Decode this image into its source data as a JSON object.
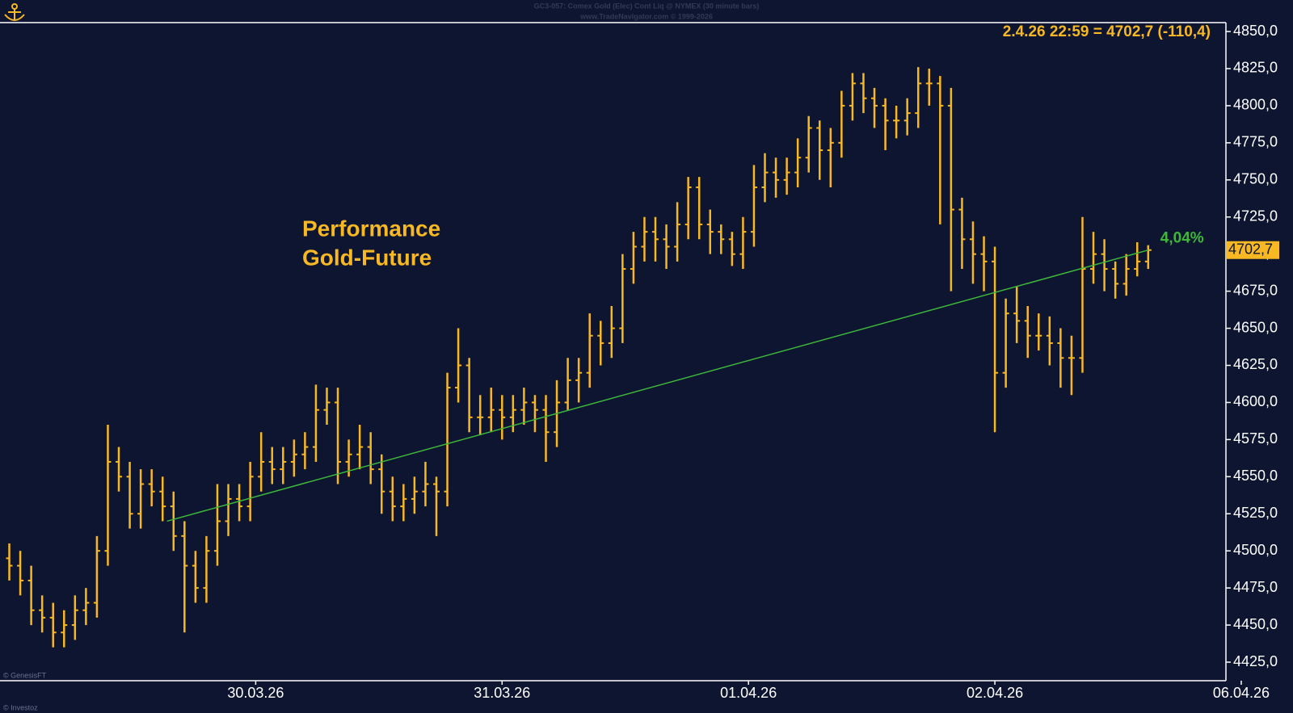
{
  "chart_data": {
    "type": "ohlc",
    "header": "GC3-057:  Comex Gold (Elec) Cont Liq @ NYMEX  (30 minute bars)",
    "subheader": "www.TradeNavigator.com © 1999-2026",
    "annotation": [
      "Performance",
      "Gold-Future"
    ],
    "info": "2.4.26 22:59 = 4702,7 (-110,4)",
    "copyright": "© GenesisFT",
    "footer": "© Investoz",
    "color": "#f7b824",
    "x": [
      0,
      1,
      2,
      3,
      4,
      5,
      6,
      7,
      8,
      9,
      10,
      11,
      12,
      13,
      14,
      15,
      16,
      17,
      18,
      19,
      20,
      21,
      22,
      23,
      24,
      25,
      26,
      27,
      28,
      29,
      30,
      31,
      32,
      33,
      34,
      35,
      36,
      37,
      38,
      39,
      40,
      41,
      42,
      43,
      44,
      45,
      46,
      47,
      48,
      49,
      50,
      51,
      52,
      53,
      54,
      55,
      56,
      57,
      58,
      59,
      60,
      61,
      62,
      63,
      64,
      65,
      66,
      67,
      68,
      69,
      70,
      71,
      72,
      73,
      74,
      75,
      76,
      77,
      78,
      79,
      80,
      81,
      82,
      83,
      84,
      85,
      86,
      87,
      88,
      89,
      90,
      91,
      92,
      93,
      94,
      95,
      96,
      97,
      98,
      99,
      100,
      101,
      102,
      103,
      104
    ],
    "open": [
      4495,
      4490,
      4480,
      4460,
      4455,
      4445,
      4450,
      4460,
      4465,
      4500,
      4560,
      4550,
      4525,
      4545,
      4540,
      4530,
      4510,
      4490,
      4475,
      4500,
      4520,
      4535,
      4530,
      4550,
      4560,
      4555,
      4560,
      4565,
      4570,
      4595,
      4600,
      4560,
      4565,
      4570,
      4555,
      4540,
      4530,
      4535,
      4540,
      4545,
      4540,
      4610,
      4625,
      4590,
      4590,
      4595,
      4590,
      4595,
      4600,
      4595,
      4580,
      4600,
      4615,
      4620,
      4645,
      4640,
      4650,
      4690,
      4705,
      4715,
      4710,
      4705,
      4720,
      4745,
      4720,
      4715,
      4710,
      4700,
      4715,
      4745,
      4755,
      4750,
      4755,
      4765,
      4785,
      4770,
      4775,
      4800,
      4815,
      4805,
      4800,
      4790,
      4790,
      4795,
      4815,
      4815,
      4800,
      4730,
      4710,
      4700,
      4695,
      4620,
      4660,
      4655,
      4645,
      4645,
      4640,
      4630,
      4630,
      4690,
      4700,
      4690,
      4680,
      4690,
      4695
    ],
    "high": [
      4505,
      4500,
      4490,
      4470,
      4465,
      4460,
      4470,
      4475,
      4510,
      4585,
      4570,
      4560,
      4555,
      4555,
      4550,
      4540,
      4520,
      4500,
      4510,
      4545,
      4545,
      4545,
      4560,
      4580,
      4570,
      4570,
      4575,
      4580,
      4612,
      4610,
      4610,
      4575,
      4585,
      4580,
      4565,
      4550,
      4545,
      4550,
      4560,
      4550,
      4620,
      4650,
      4630,
      4605,
      4610,
      4605,
      4605,
      4610,
      4605,
      4605,
      4615,
      4630,
      4630,
      4660,
      4655,
      4665,
      4700,
      4715,
      4725,
      4725,
      4720,
      4735,
      4752,
      4752,
      4730,
      4720,
      4715,
      4725,
      4760,
      4768,
      4765,
      4765,
      4778,
      4793,
      4790,
      4785,
      4810,
      4822,
      4822,
      4812,
      4805,
      4800,
      4805,
      4826,
      4825,
      4820,
      4812,
      4738,
      4722,
      4712,
      4705,
      4670,
      4678,
      4665,
      4660,
      4658,
      4650,
      4645,
      4725,
      4715,
      4710,
      4695,
      4700,
      4708,
      4706
    ],
    "low": [
      4480,
      4470,
      4450,
      4445,
      4435,
      4435,
      4440,
      4450,
      4455,
      4490,
      4540,
      4515,
      4515,
      4530,
      4520,
      4500,
      4445,
      4465,
      4465,
      4490,
      4510,
      4520,
      4520,
      4540,
      4545,
      4545,
      4550,
      4555,
      4560,
      4585,
      4545,
      4550,
      4555,
      4545,
      4525,
      4520,
      4520,
      4525,
      4530,
      4510,
      4530,
      4600,
      4580,
      4578,
      4580,
      4575,
      4580,
      4585,
      4580,
      4560,
      4570,
      4595,
      4600,
      4610,
      4625,
      4630,
      4640,
      4680,
      4695,
      4695,
      4690,
      4695,
      4710,
      4710,
      4700,
      4700,
      4692,
      4690,
      4705,
      4735,
      4738,
      4740,
      4745,
      4755,
      4750,
      4745,
      4765,
      4790,
      4795,
      4785,
      4770,
      4778,
      4780,
      4785,
      4800,
      4720,
      4675,
      4690,
      4680,
      4675,
      4580,
      4610,
      4640,
      4630,
      4635,
      4625,
      4610,
      4605,
      4620,
      4680,
      4675,
      4670,
      4672,
      4685,
      4690
    ],
    "close": [
      4490,
      4480,
      4460,
      4455,
      4445,
      4450,
      4460,
      4465,
      4500,
      4560,
      4550,
      4525,
      4545,
      4540,
      4530,
      4510,
      4490,
      4475,
      4500,
      4520,
      4535,
      4530,
      4550,
      4560,
      4555,
      4560,
      4565,
      4570,
      4595,
      4600,
      4560,
      4565,
      4570,
      4555,
      4540,
      4530,
      4535,
      4540,
      4545,
      4540,
      4610,
      4625,
      4590,
      4590,
      4595,
      4590,
      4595,
      4600,
      4595,
      4580,
      4600,
      4615,
      4620,
      4645,
      4640,
      4650,
      4690,
      4705,
      4715,
      4710,
      4705,
      4720,
      4745,
      4720,
      4715,
      4710,
      4700,
      4715,
      4745,
      4755,
      4750,
      4755,
      4765,
      4785,
      4770,
      4775,
      4800,
      4815,
      4805,
      4800,
      4790,
      4790,
      4795,
      4815,
      4815,
      4800,
      4730,
      4710,
      4700,
      4695,
      4620,
      4660,
      4655,
      4645,
      4645,
      4640,
      4630,
      4630,
      4690,
      4700,
      4690,
      4680,
      4690,
      4695,
      4702.7
    ],
    "last_price": {
      "value": 4702.7,
      "label": "4702,7"
    },
    "trendline": {
      "x": [
        14.4,
        104
      ],
      "y": [
        4520,
        4702.7
      ],
      "color": "#3db83a",
      "label": "4,04%"
    },
    "xlim": [
      -0.85,
      111.1
    ],
    "xticks": [
      {
        "value": 22.5,
        "label": "30.03.26"
      },
      {
        "value": 45,
        "label": "31.03.26"
      },
      {
        "value": 67.5,
        "label": "01.04.26"
      },
      {
        "value": 90,
        "label": "02.04.26"
      },
      {
        "value": 112.5,
        "label": "06.04.26"
      }
    ],
    "ylim": [
      4412.5,
      4856
    ],
    "yticks": [
      {
        "value": 4425,
        "label": "4425,0"
      },
      {
        "value": 4450,
        "label": "4450,0"
      },
      {
        "value": 4475,
        "label": "4475,0"
      },
      {
        "value": 4500,
        "label": "4500,0"
      },
      {
        "value": 4525,
        "label": "4525,0"
      },
      {
        "value": 4550,
        "label": "4550,0"
      },
      {
        "value": 4575,
        "label": "4575,0"
      },
      {
        "value": 4600,
        "label": "4600,0"
      },
      {
        "value": 4625,
        "label": "4625,0"
      },
      {
        "value": 4650,
        "label": "4650,0"
      },
      {
        "value": 4675,
        "label": "4675,0"
      },
      {
        "value": 4700,
        "label": "4700,0"
      },
      {
        "value": 4725,
        "label": "4725,0"
      },
      {
        "value": 4750,
        "label": "4750,0"
      },
      {
        "value": 4775,
        "label": "4775,0"
      },
      {
        "value": 4800,
        "label": "4800,0"
      },
      {
        "value": 4825,
        "label": "4825,0"
      },
      {
        "value": 4850,
        "label": "4850,0"
      }
    ]
  }
}
